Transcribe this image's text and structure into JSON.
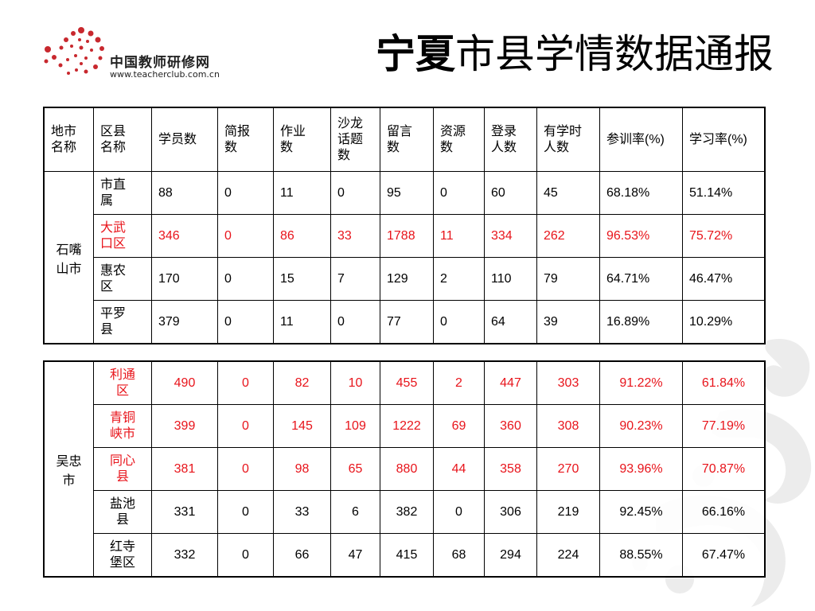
{
  "title": {
    "bold_part": "宁夏",
    "rest": "市县学情数据通报"
  },
  "logo": {
    "name": "中国教师研修网",
    "url": "www.teacherclub.com.cn"
  },
  "headers": [
    "地市名称",
    "区县名称",
    "学员数",
    "简报数",
    "作业数",
    "沙龙话题数",
    "留言数",
    "资源数",
    "登录人数",
    "有学时人数",
    "参训率(%)",
    "学习率(%)"
  ],
  "header_lines": [
    [
      "地市",
      "名称"
    ],
    [
      "区县",
      "名称"
    ],
    [
      "学员数"
    ],
    [
      "简报",
      "数"
    ],
    [
      "作业",
      "数"
    ],
    [
      "沙龙",
      "话题",
      "数"
    ],
    [
      "留言",
      "数"
    ],
    [
      "资源",
      "数"
    ],
    [
      "登录",
      "人数"
    ],
    [
      "有学时",
      "人数"
    ],
    [
      "参训率(%)"
    ],
    [
      "学习率(%)"
    ]
  ],
  "colors": {
    "highlight": "#e8141b",
    "text": "#000000"
  },
  "tables": [
    {
      "city": [
        "石嘴",
        "山市"
      ],
      "rows": [
        {
          "district": [
            "市直",
            "属"
          ],
          "highlight": false,
          "values": [
            "88",
            "0",
            "11",
            "0",
            "95",
            "0",
            "60",
            "45",
            "68.18%",
            "51.14%"
          ]
        },
        {
          "district": [
            "大武",
            "口区"
          ],
          "highlight": true,
          "values": [
            "346",
            "0",
            "86",
            "33",
            "1788",
            "11",
            "334",
            "262",
            "96.53%",
            "75.72%"
          ]
        },
        {
          "district": [
            "惠农",
            "区"
          ],
          "highlight": false,
          "values": [
            "170",
            "0",
            "15",
            "7",
            "129",
            "2",
            "110",
            "79",
            "64.71%",
            "46.47%"
          ]
        },
        {
          "district": [
            "平罗",
            "县"
          ],
          "highlight": false,
          "values": [
            "379",
            "0",
            "11",
            "0",
            "77",
            "0",
            "64",
            "39",
            "16.89%",
            "10.29%"
          ]
        }
      ]
    },
    {
      "city": [
        "吴忠",
        "市"
      ],
      "rows": [
        {
          "district": [
            "利通",
            "区"
          ],
          "highlight": true,
          "values": [
            "490",
            "0",
            "82",
            "10",
            "455",
            "2",
            "447",
            "303",
            "91.22%",
            "61.84%"
          ]
        },
        {
          "district": [
            "青铜",
            "峡市"
          ],
          "highlight": true,
          "values": [
            "399",
            "0",
            "145",
            "109",
            "1222",
            "69",
            "360",
            "308",
            "90.23%",
            "77.19%"
          ]
        },
        {
          "district": [
            "同心",
            "县"
          ],
          "highlight": true,
          "values": [
            "381",
            "0",
            "98",
            "65",
            "880",
            "44",
            "358",
            "270",
            "93.96%",
            "70.87%"
          ]
        },
        {
          "district": [
            "盐池",
            "县"
          ],
          "highlight": false,
          "values": [
            "331",
            "0",
            "33",
            "6",
            "382",
            "0",
            "306",
            "219",
            "92.45%",
            "66.16%"
          ]
        },
        {
          "district": [
            "红寺",
            "堡区"
          ],
          "highlight": false,
          "values": [
            "332",
            "0",
            "66",
            "47",
            "415",
            "68",
            "294",
            "224",
            "88.55%",
            "67.47%"
          ]
        }
      ]
    }
  ]
}
